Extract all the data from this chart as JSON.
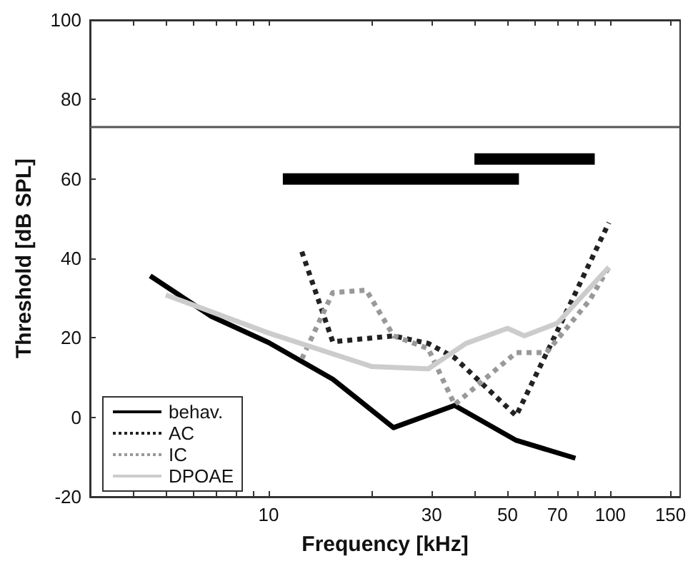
{
  "chart_data": {
    "type": "line",
    "xlabel": "Frequency [kHz]",
    "ylabel": "Threshold [dB SPL]",
    "log": "x",
    "xlim": [
      3,
      160
    ],
    "ylim": [
      -20,
      100
    ],
    "xticks": [
      {
        "value": 4,
        "label": null
      },
      {
        "value": 5,
        "label": null
      },
      {
        "value": 6,
        "label": null
      },
      {
        "value": 7,
        "label": null
      },
      {
        "value": 8,
        "label": null
      },
      {
        "value": 9,
        "label": null
      },
      10,
      {
        "value": 20,
        "label": null
      },
      30,
      {
        "value": 40,
        "label": null
      },
      50,
      {
        "value": 60,
        "label": null
      },
      70,
      {
        "value": 80,
        "label": null
      },
      {
        "value": 90,
        "label": null
      },
      100,
      150
    ],
    "yticks": [
      -20,
      0,
      20,
      40,
      60,
      80,
      100
    ],
    "grid": false,
    "legend": "bottom left",
    "marker": "none",
    "ref_lines": [
      {
        "axis": "y",
        "value": 73,
        "label": null,
        "color": "#555555"
      }
    ],
    "series": [
      {
        "name": "behav.",
        "color": "#000000",
        "line_style": "solid",
        "x": [
          4.5,
          6.8,
          10,
          15.4,
          23.2,
          35,
          53,
          79
        ],
        "values": [
          35.6,
          25.4,
          18.8,
          9.6,
          -2.6,
          3,
          -5.8,
          -10.3
        ]
      },
      {
        "name": "AC",
        "color": "#222222",
        "line_style": "dotted",
        "x": [
          12.5,
          15.4,
          23.2,
          29.3,
          35,
          53,
          70,
          99
        ],
        "values": [
          41.7,
          19,
          20.5,
          18.6,
          15,
          0.4,
          21.8,
          49
        ]
      },
      {
        "name": "IC",
        "color": "#999999",
        "line_style": "dotted",
        "x": [
          12.5,
          15.4,
          19.3,
          23.2,
          29.3,
          35,
          53,
          65,
          87,
          99
        ],
        "values": [
          14.7,
          31.4,
          32,
          20.5,
          17.3,
          3.2,
          16.3,
          16.3,
          29.5,
          37.8
        ]
      },
      {
        "name": "DPOAE",
        "color": "#cccccc",
        "line_style": "solid",
        "x": [
          5,
          10,
          20,
          29.3,
          37.8,
          50,
          56,
          70,
          99
        ],
        "values": [
          30.8,
          21.2,
          12.8,
          12.2,
          18.6,
          22.4,
          20.5,
          23.7,
          37.8
        ]
      },
      {
        "color": "#000000",
        "line_style": "solid",
        "x": [
          11,
          54
        ],
        "values": [
          60,
          60
        ]
      },
      {
        "color": "#000000",
        "line_style": "solid",
        "x": [
          40,
          90
        ],
        "values": [
          65,
          65
        ]
      }
    ]
  }
}
